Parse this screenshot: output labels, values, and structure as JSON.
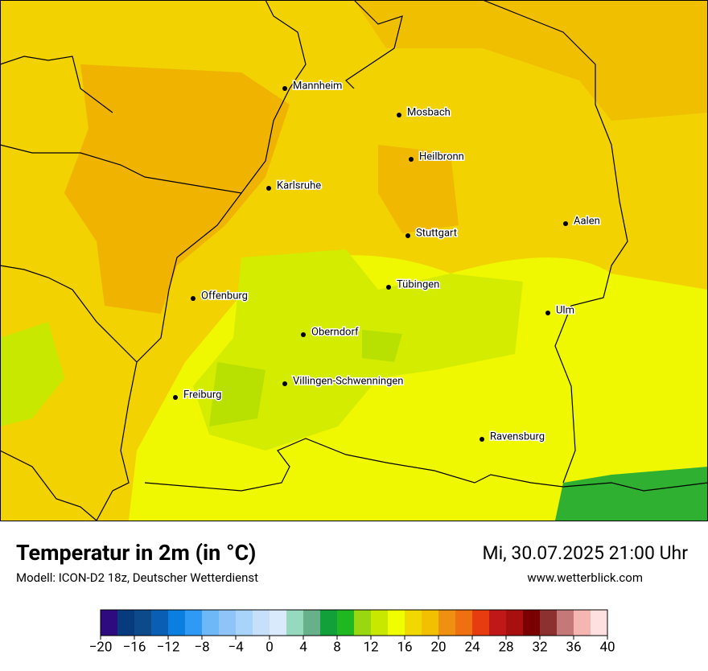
{
  "header": {
    "title": "Temperatur in 2m (in °C)",
    "subtitle": "Modell: ICON-D2 18z, Deutscher Wetterdienst",
    "datetime": "Mi, 30.07.2025 21:00 Uhr",
    "website": "www.wetterblick.com"
  },
  "cities": [
    "Mannheim",
    "Mosbach",
    "Heilbronn",
    "Karlsruhe",
    "Aalen",
    "Stuttgart",
    "Tübingen",
    "Offenburg",
    "Ulm",
    "Oberndorf",
    "Villingen-Schwenningen",
    "Freiburg",
    "Ravensburg"
  ],
  "colorbar": {
    "bins": [
      -20,
      -18,
      -16,
      -14,
      -12,
      -10,
      -8,
      -6,
      -4,
      -2,
      0,
      2,
      4,
      6,
      8,
      10,
      12,
      14,
      16,
      18,
      20,
      22,
      24,
      26,
      28,
      30,
      32,
      34,
      36,
      38,
      40
    ],
    "colors": [
      "#2e0c80",
      "#083b7e",
      "#0d4a8c",
      "#0a5fb5",
      "#0a7fe0",
      "#2f9af5",
      "#6fb8f7",
      "#8ec4f7",
      "#a8d3fa",
      "#c6e0fb",
      "#d8eafc",
      "#96d9bf",
      "#66b08a",
      "#12a03a",
      "#20b820",
      "#99d810",
      "#c8e800",
      "#f0ff00",
      "#f0d800",
      "#f2c000",
      "#f09010",
      "#ee7010",
      "#e63c10",
      "#c01818",
      "#a81010",
      "#7a0000",
      "#8c3030",
      "#c47878",
      "#f5b5b0",
      "#ffe0e0"
    ],
    "ticks": [
      {
        "value": -20,
        "label": "−20"
      },
      {
        "value": -16,
        "label": "−16"
      },
      {
        "value": -12,
        "label": "−12"
      },
      {
        "value": -8,
        "label": "−8"
      },
      {
        "value": -4,
        "label": "−4"
      },
      0,
      4,
      8,
      12,
      16,
      20,
      24,
      28,
      32,
      36,
      40
    ]
  }
}
